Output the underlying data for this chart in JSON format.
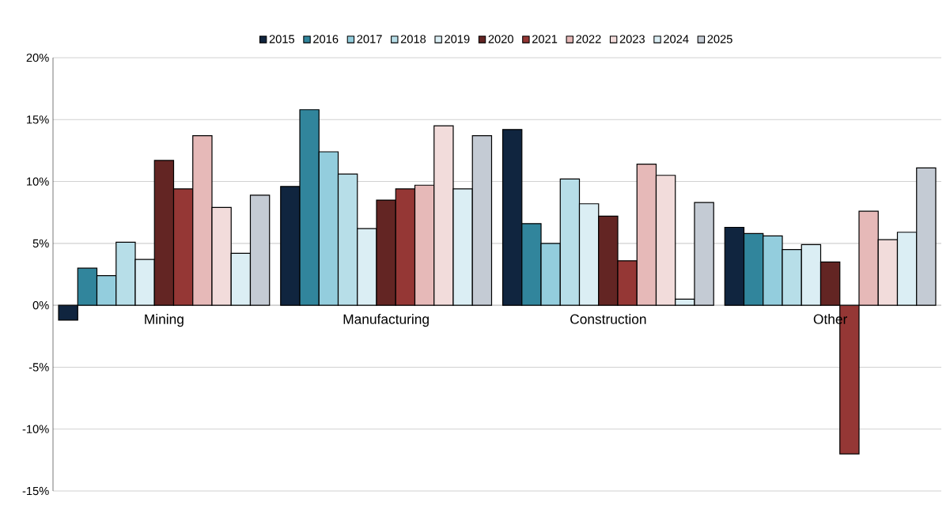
{
  "chart_data": {
    "type": "bar",
    "categories": [
      "Mining",
      "Manufacturing",
      "Construction",
      "Other"
    ],
    "series": [
      {
        "name": "2015",
        "color": "#10253f",
        "values": [
          -1.2,
          9.6,
          14.2,
          6.3
        ]
      },
      {
        "name": "2016",
        "color": "#31859c",
        "values": [
          3.0,
          15.8,
          6.6,
          5.8
        ]
      },
      {
        "name": "2017",
        "color": "#93cddd",
        "values": [
          2.4,
          12.4,
          5.0,
          5.6
        ]
      },
      {
        "name": "2018",
        "color": "#b7dee8",
        "values": [
          5.1,
          10.6,
          10.2,
          4.5
        ]
      },
      {
        "name": "2019",
        "color": "#dbeef4",
        "values": [
          3.7,
          6.2,
          8.2,
          4.9
        ]
      },
      {
        "name": "2020",
        "color": "#632523",
        "values": [
          11.7,
          8.5,
          7.2,
          3.5
        ]
      },
      {
        "name": "2021",
        "color": "#953735",
        "values": [
          9.4,
          9.4,
          3.6,
          -12.0
        ]
      },
      {
        "name": "2022",
        "color": "#e6b9b8",
        "values": [
          13.7,
          9.7,
          11.4,
          7.6
        ]
      },
      {
        "name": "2023",
        "color": "#f2dcdb",
        "values": [
          7.9,
          14.5,
          10.5,
          5.3
        ]
      },
      {
        "name": "2024",
        "color": "#dbeef4",
        "values": [
          4.2,
          9.4,
          0.5,
          5.9
        ]
      },
      {
        "name": "2025",
        "color": "#c4cbd4",
        "values": [
          8.9,
          13.7,
          8.3,
          11.1
        ]
      }
    ],
    "ylim": [
      -15,
      20
    ],
    "yticks": [
      {
        "value": -15,
        "label": "-15%"
      },
      {
        "value": -10,
        "label": "-10%"
      },
      {
        "value": -5,
        "label": "-5%"
      },
      {
        "value": 0,
        "label": "0%"
      },
      {
        "value": 5,
        "label": "5%"
      },
      {
        "value": 10,
        "label": "10%"
      },
      {
        "value": 15,
        "label": "15%"
      },
      {
        "value": 20,
        "label": "20%"
      }
    ],
    "grid": "y",
    "legend": "top"
  }
}
